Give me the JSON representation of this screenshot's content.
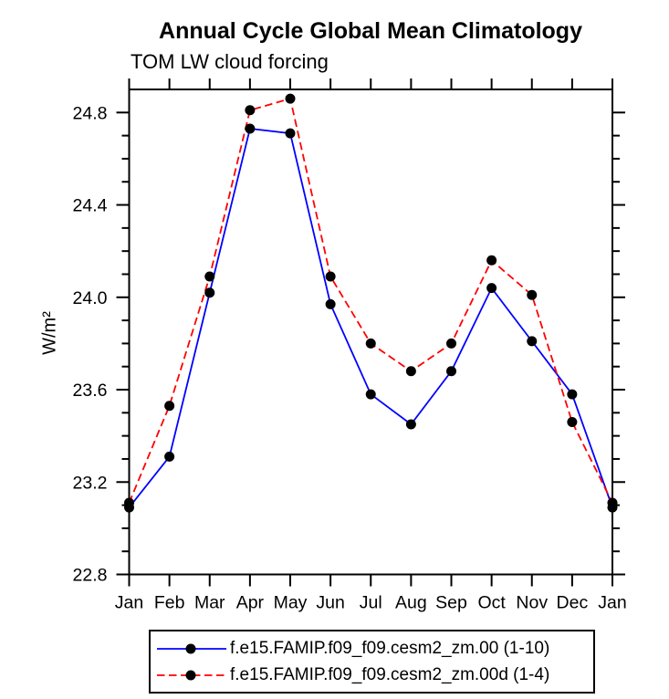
{
  "header": {
    "title": "Annual Cycle Global Mean Climatology",
    "subtitle": "TOM LW cloud forcing"
  },
  "chart_data": {
    "type": "line",
    "title": "Annual Cycle Global Mean Climatology",
    "subtitle": "TOM LW cloud forcing",
    "xlabel": "",
    "ylabel": "W/m²",
    "x_categories": [
      "Jan",
      "Feb",
      "Mar",
      "Apr",
      "May",
      "Jun",
      "Jul",
      "Aug",
      "Sep",
      "Oct",
      "Nov",
      "Dec",
      "Jan"
    ],
    "y_tick_values": [
      22.8,
      23.2,
      23.6,
      24.0,
      24.4,
      24.8
    ],
    "y_tick_labels": [
      "22.8",
      "23.2",
      "23.6",
      "24.0",
      "24.4",
      "24.8"
    ],
    "y_minor_step": 0.1,
    "ylim": [
      22.8,
      24.9
    ],
    "grid": false,
    "legend_position": "bottom",
    "axis_color": "#000000",
    "marker_color": "#000000",
    "series": [
      {
        "name": "f.e15.FAMIP.f09_f09.cesm2_zm.00 (1-10)",
        "color": "#0000ff",
        "line_style": "solid",
        "marker": "circle",
        "values": [
          23.09,
          23.31,
          24.02,
          24.73,
          24.71,
          23.97,
          23.58,
          23.45,
          23.68,
          24.04,
          23.81,
          23.58,
          23.09
        ]
      },
      {
        "name": "f.e15.FAMIP.f09_f09.cesm2_zm.00d (1-4)",
        "color": "#ff0000",
        "line_style": "dashed",
        "marker": "circle",
        "values": [
          23.11,
          23.53,
          24.09,
          24.81,
          24.86,
          24.09,
          23.8,
          23.68,
          23.8,
          24.16,
          24.01,
          23.46,
          23.11
        ]
      }
    ]
  }
}
